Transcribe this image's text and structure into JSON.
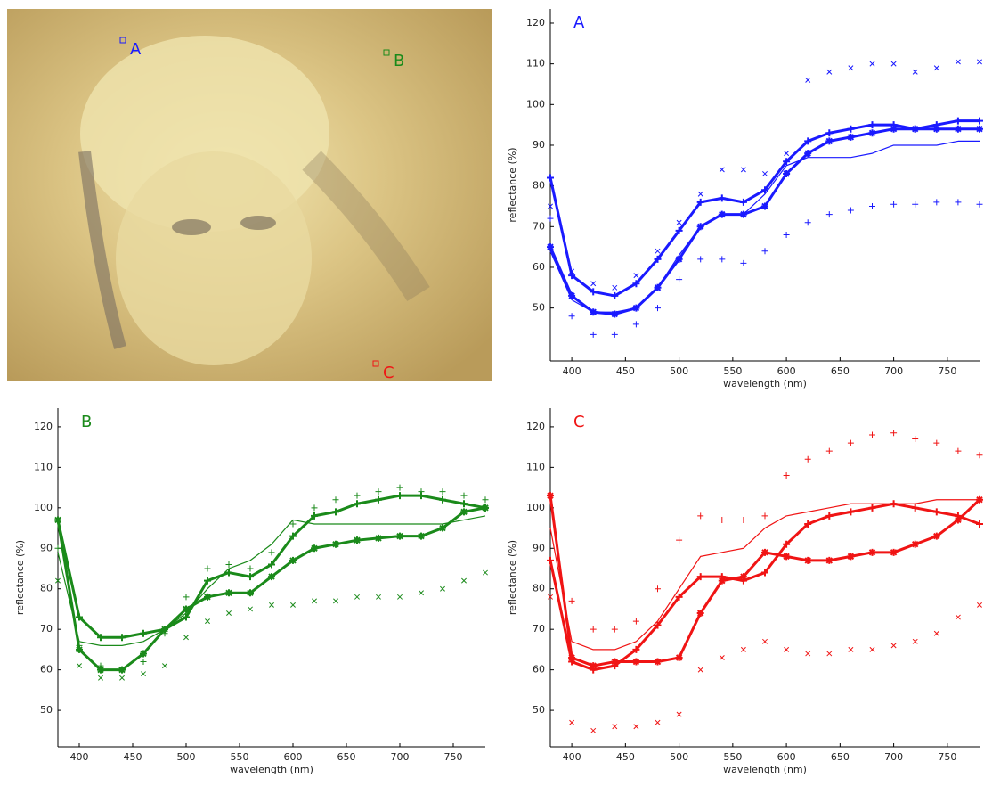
{
  "photo": {
    "labels": [
      "A",
      "B",
      "C"
    ],
    "label_colors": [
      "#1a1aff",
      "#1a8a1a",
      "#f01414"
    ]
  },
  "chart_data": [
    {
      "type": "line",
      "title": "A",
      "color": "#1a1aff",
      "xlabel": "wavelength (nm)",
      "ylabel": "reflectance (%)",
      "x": [
        380,
        400,
        420,
        440,
        460,
        480,
        500,
        520,
        540,
        560,
        580,
        600,
        620,
        640,
        660,
        680,
        700,
        720,
        740,
        760,
        780
      ],
      "xlim": [
        380,
        780
      ],
      "ylim": [
        37,
        123.5
      ],
      "xticks": [
        400,
        450,
        500,
        550,
        600,
        650,
        700,
        750
      ],
      "yticks": [
        50,
        60,
        70,
        80,
        90,
        100,
        110,
        120
      ],
      "series": [
        {
          "line_width": 3,
          "marker": "+",
          "values": [
            82,
            58,
            54,
            53,
            56,
            62,
            69,
            76,
            77,
            76,
            79,
            86,
            91,
            93,
            94,
            95,
            95,
            94,
            95,
            96,
            96
          ]
        },
        {
          "line_width": 3,
          "marker": "*",
          "values": [
            65,
            53,
            49,
            48.5,
            50,
            55,
            62,
            70,
            73,
            73,
            75,
            83,
            88,
            91,
            92,
            93,
            94,
            94,
            94,
            94,
            94
          ]
        },
        {
          "line_width": 1.2,
          "marker": "none",
          "values": [
            64,
            52,
            49,
            49,
            50,
            55,
            63,
            70,
            73,
            73,
            78,
            85,
            87,
            87,
            87,
            88,
            90,
            90,
            90,
            91,
            91
          ]
        },
        {
          "line_width": 0,
          "marker": "x",
          "values": [
            75,
            59,
            56,
            55,
            58,
            64,
            71,
            78,
            84,
            84,
            83,
            88,
            106,
            108,
            109,
            110,
            110,
            108,
            109,
            110.5,
            110.5
          ]
        },
        {
          "line_width": 0,
          "marker": "+",
          "values": [
            72,
            48,
            43.5,
            43.5,
            46,
            50,
            57,
            62,
            62,
            61,
            64,
            68,
            71,
            73,
            74,
            75,
            75.5,
            75.5,
            76,
            76,
            75.5
          ]
        }
      ]
    },
    {
      "type": "line",
      "title": "B",
      "color": "#1a8a1a",
      "xlabel": "wavelength (nm)",
      "ylabel": "reflectance (%)",
      "x": [
        380,
        400,
        420,
        440,
        460,
        480,
        500,
        520,
        540,
        560,
        580,
        600,
        620,
        640,
        660,
        680,
        700,
        720,
        740,
        760,
        780
      ],
      "xlim": [
        380,
        780
      ],
      "ylim": [
        41,
        124.6
      ],
      "xticks": [
        400,
        450,
        500,
        550,
        600,
        650,
        700,
        750
      ],
      "yticks": [
        50,
        60,
        70,
        80,
        90,
        100,
        110,
        120
      ],
      "series": [
        {
          "line_width": 3,
          "marker": "+",
          "values": [
            97,
            73,
            68,
            68,
            69,
            70,
            73,
            82,
            84,
            83,
            86,
            93,
            98,
            99,
            101,
            102,
            103,
            103,
            102,
            101,
            100
          ]
        },
        {
          "line_width": 3,
          "marker": "*",
          "values": [
            97,
            65,
            60,
            60,
            64,
            70,
            75,
            78,
            79,
            79,
            83,
            87,
            90,
            91,
            92,
            92.5,
            93,
            93,
            95,
            99,
            100
          ]
        },
        {
          "line_width": 1.2,
          "marker": "none",
          "values": [
            89,
            67,
            66,
            66,
            67,
            70,
            74,
            80,
            85,
            87,
            91,
            97,
            96,
            96,
            96,
            96,
            96,
            96,
            96,
            97,
            98
          ]
        },
        {
          "line_width": 0,
          "marker": "+",
          "values": [
            90,
            66,
            61,
            60,
            62,
            69,
            78,
            85,
            86,
            85,
            89,
            96,
            100,
            102,
            103,
            104,
            105,
            104,
            104,
            103,
            102
          ]
        },
        {
          "line_width": 0,
          "marker": "x",
          "values": [
            82,
            61,
            58,
            58,
            59,
            61,
            68,
            72,
            74,
            75,
            76,
            76,
            77,
            77,
            78,
            78,
            78,
            79,
            80,
            82,
            84
          ]
        }
      ]
    },
    {
      "type": "line",
      "title": "C",
      "color": "#f01414",
      "xlabel": "wavelength (nm)",
      "ylabel": "reflectance (%)",
      "x": [
        380,
        400,
        420,
        440,
        460,
        480,
        500,
        520,
        540,
        560,
        580,
        600,
        620,
        640,
        660,
        680,
        700,
        720,
        740,
        760,
        780
      ],
      "xlim": [
        380,
        780
      ],
      "ylim": [
        41,
        124.6
      ],
      "xticks": [
        400,
        450,
        500,
        550,
        600,
        650,
        700,
        750
      ],
      "yticks": [
        50,
        60,
        70,
        80,
        90,
        100,
        110,
        120
      ],
      "series": [
        {
          "line_width": 3,
          "marker": "*",
          "values": [
            103,
            63,
            61,
            62,
            62,
            62,
            63,
            74,
            82,
            83,
            89,
            88,
            87,
            87,
            88,
            89,
            89,
            91,
            93,
            97,
            102
          ]
        },
        {
          "line_width": 3,
          "marker": "+",
          "values": [
            87,
            62,
            60,
            61,
            65,
            71,
            78,
            83,
            83,
            82,
            84,
            91,
            96,
            98,
            99,
            100,
            101,
            100,
            99,
            98,
            96
          ]
        },
        {
          "line_width": 1.2,
          "marker": "none",
          "values": [
            95,
            67,
            65,
            65,
            67,
            72,
            80,
            88,
            89,
            90,
            95,
            98,
            99,
            100,
            101,
            101,
            101,
            101,
            102,
            102,
            102
          ]
        },
        {
          "line_width": 0,
          "marker": "+",
          "values": [
            87,
            77,
            70,
            70,
            72,
            80,
            92,
            98,
            97,
            97,
            98,
            108,
            112,
            114,
            116,
            118,
            118.5,
            117,
            116,
            114,
            113
          ]
        },
        {
          "line_width": 0,
          "marker": "x",
          "values": [
            78,
            47,
            45,
            46,
            46,
            47,
            49,
            60,
            63,
            65,
            67,
            65,
            64,
            64,
            65,
            65,
            66,
            67,
            69,
            73,
            76
          ]
        }
      ]
    }
  ]
}
